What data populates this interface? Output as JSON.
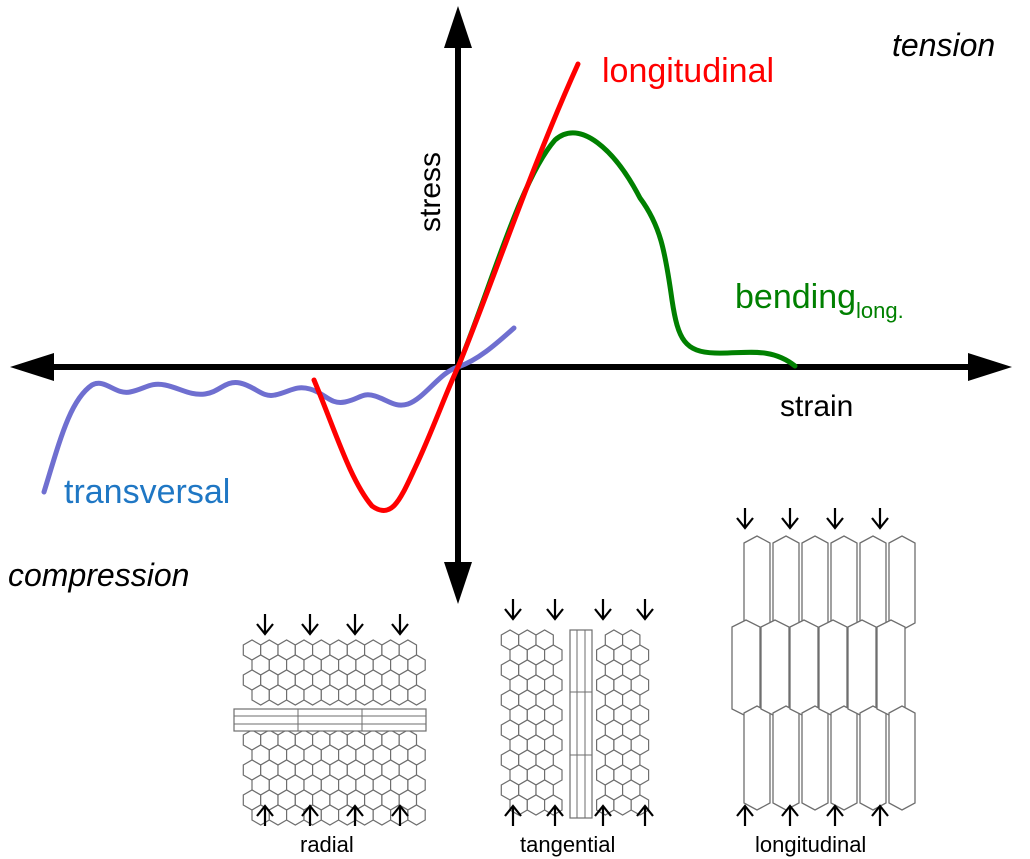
{
  "labels": {
    "tension": "tension",
    "compression": "compression",
    "stress": "stress",
    "strain": "strain"
  },
  "curves": {
    "longitudinal": {
      "label": "longitudinal",
      "color": "#ff0000"
    },
    "bending": {
      "label": "bending",
      "subscript": "long.",
      "color": "#008000"
    },
    "transversal": {
      "label": "transversal",
      "color": "#6f6fd0",
      "label_color": "#1f77c4"
    }
  },
  "insets": {
    "radial": "radial",
    "tangential": "tangential",
    "longitudinal": "longitudinal"
  },
  "colors": {
    "axis": "#000000",
    "cell_stroke": "#6e6e6e"
  }
}
